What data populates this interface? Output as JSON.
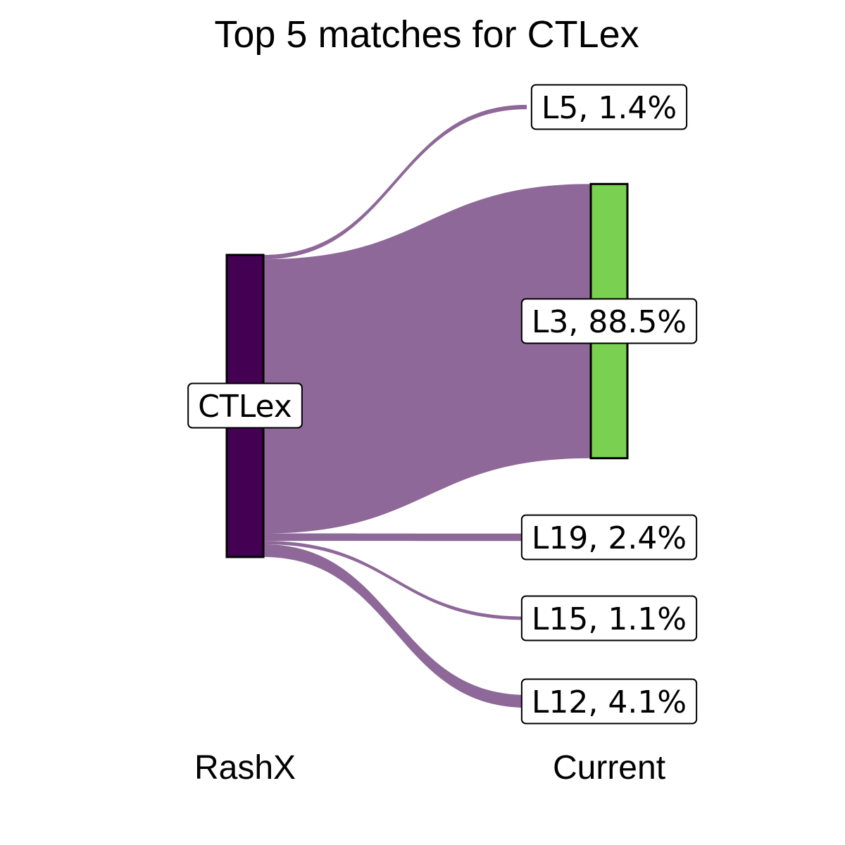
{
  "chart_data": {
    "type": "sankey",
    "title": "Top 5 matches for CTLex",
    "axis_labels": {
      "left": "RashX",
      "right": "Current"
    },
    "source": {
      "name": "CTLex",
      "label": "CTLex",
      "color": "#440154"
    },
    "flow_color": "#8e6898",
    "highlight_color": "#7ad151",
    "targets": [
      {
        "name": "L5",
        "value": 1.4,
        "label": "L5, 1.4%"
      },
      {
        "name": "L3",
        "value": 88.5,
        "label": "L3, 88.5%",
        "highlight": true
      },
      {
        "name": "L19",
        "value": 2.4,
        "label": "L19, 2.4%"
      },
      {
        "name": "L15",
        "value": 1.1,
        "label": "L15, 1.1%"
      },
      {
        "name": "L12",
        "value": 4.1,
        "label": "L12, 4.1%"
      }
    ]
  }
}
